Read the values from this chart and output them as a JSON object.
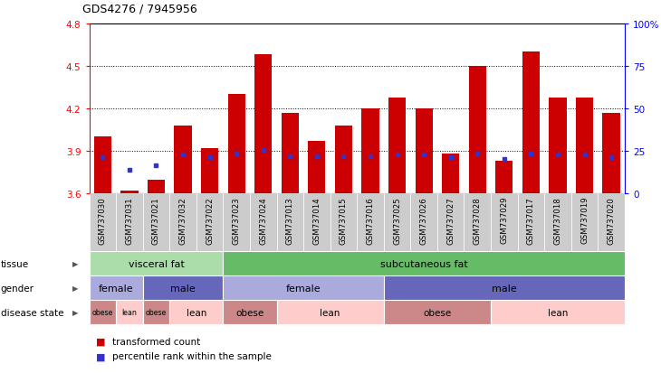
{
  "title": "GDS4276 / 7945956",
  "samples": [
    "GSM737030",
    "GSM737031",
    "GSM737021",
    "GSM737032",
    "GSM737022",
    "GSM737023",
    "GSM737024",
    "GSM737013",
    "GSM737014",
    "GSM737015",
    "GSM737016",
    "GSM737025",
    "GSM737026",
    "GSM737027",
    "GSM737028",
    "GSM737029",
    "GSM737017",
    "GSM737018",
    "GSM737019",
    "GSM737020"
  ],
  "bar_values": [
    4.0,
    3.62,
    3.7,
    4.08,
    3.92,
    4.3,
    4.58,
    4.17,
    3.97,
    4.08,
    4.2,
    4.28,
    4.2,
    3.88,
    4.5,
    3.83,
    4.6,
    4.28,
    4.28,
    4.17
  ],
  "blue_values": [
    3.855,
    3.77,
    3.8,
    3.875,
    3.855,
    3.88,
    3.905,
    3.865,
    3.865,
    3.865,
    3.865,
    3.875,
    3.875,
    3.855,
    3.88,
    3.845,
    3.88,
    3.875,
    3.875,
    3.855
  ],
  "ymin": 3.6,
  "ymax": 4.8,
  "yticks_left": [
    3.6,
    3.9,
    4.2,
    4.5,
    4.8
  ],
  "yticks_right_pct": [
    0,
    25,
    50,
    75,
    100
  ],
  "ytick_labels_right": [
    "0",
    "25",
    "50",
    "75",
    "100%"
  ],
  "bar_color": "#CC0000",
  "blue_color": "#3333CC",
  "plot_bg": "#FFFFFF",
  "xtick_bg": "#CCCCCC",
  "tissue_groups": [
    {
      "label": "visceral fat",
      "start": 0,
      "end": 5,
      "color": "#AADDAA"
    },
    {
      "label": "subcutaneous fat",
      "start": 5,
      "end": 20,
      "color": "#66BB66"
    }
  ],
  "gender_groups": [
    {
      "label": "female",
      "start": 0,
      "end": 2,
      "color": "#AAAADD"
    },
    {
      "label": "male",
      "start": 2,
      "end": 5,
      "color": "#6666BB"
    },
    {
      "label": "female",
      "start": 5,
      "end": 11,
      "color": "#AAAADD"
    },
    {
      "label": "male",
      "start": 11,
      "end": 20,
      "color": "#6666BB"
    }
  ],
  "disease_groups": [
    {
      "label": "obese",
      "start": 0,
      "end": 1,
      "color": "#CC8888"
    },
    {
      "label": "lean",
      "start": 1,
      "end": 2,
      "color": "#FFCCCC"
    },
    {
      "label": "obese",
      "start": 2,
      "end": 3,
      "color": "#CC8888"
    },
    {
      "label": "lean",
      "start": 3,
      "end": 5,
      "color": "#FFCCCC"
    },
    {
      "label": "obese",
      "start": 5,
      "end": 7,
      "color": "#CC8888"
    },
    {
      "label": "lean",
      "start": 7,
      "end": 11,
      "color": "#FFCCCC"
    },
    {
      "label": "obese",
      "start": 11,
      "end": 15,
      "color": "#CC8888"
    },
    {
      "label": "lean",
      "start": 15,
      "end": 20,
      "color": "#FFCCCC"
    }
  ],
  "legend_items": [
    {
      "label": "transformed count",
      "color": "#CC0000"
    },
    {
      "label": "percentile rank within the sample",
      "color": "#3333CC"
    }
  ]
}
